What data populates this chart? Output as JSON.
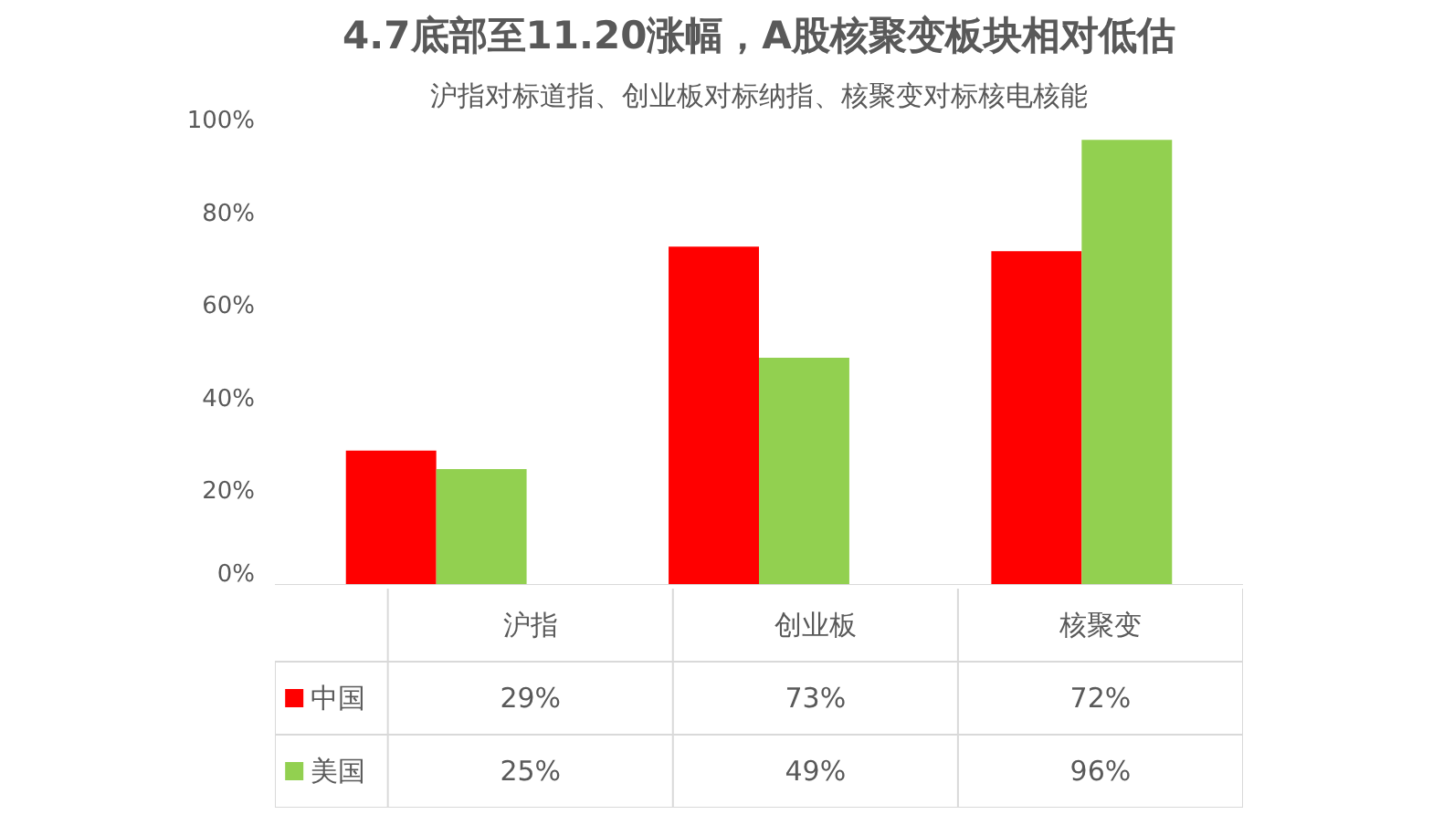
{
  "chart_data": {
    "type": "bar",
    "title": "4.7底部至11.20涨幅，A股核聚变板块相对低估",
    "subtitle": "沪指对标道指、创业板对标纳指、核聚变对标核电核能",
    "categories": [
      "沪指",
      "创业板",
      "核聚变"
    ],
    "series": [
      {
        "name": "中国",
        "color": "#ff0000",
        "values": [
          29,
          73,
          72
        ],
        "value_labels": [
          "29%",
          "73%",
          "72%"
        ]
      },
      {
        "name": "美国",
        "color": "#92d050",
        "values": [
          25,
          49,
          96
        ],
        "value_labels": [
          "25%",
          "49%",
          "96%"
        ]
      }
    ],
    "ylim": [
      0,
      100
    ],
    "yticks": [
      {
        "value": 0,
        "label": "0%"
      },
      {
        "value": 20,
        "label": "20%"
      },
      {
        "value": 40,
        "label": "40%"
      },
      {
        "value": 60,
        "label": "60%"
      },
      {
        "value": 80,
        "label": "80%"
      },
      {
        "value": 100,
        "label": "100%"
      }
    ],
    "grid": false,
    "legend": "bottom"
  }
}
